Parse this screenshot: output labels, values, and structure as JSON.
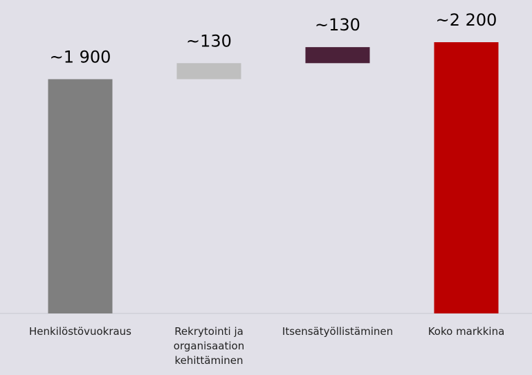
{
  "chart_data": {
    "type": "waterfall",
    "categories": [
      "Henkilöstövuokraus",
      "Rekrytointi ja organisaation kehittäminen",
      "Itsensätyöllistäminen",
      "Koko markkina"
    ],
    "values": [
      1900,
      130,
      130,
      2200
    ],
    "value_labels": [
      "~1 900",
      "~130",
      "~130",
      "~2 200"
    ],
    "colors": [
      "#7f7f7f",
      "#bfbfbf",
      "#4b2139",
      "#bb0000"
    ]
  }
}
